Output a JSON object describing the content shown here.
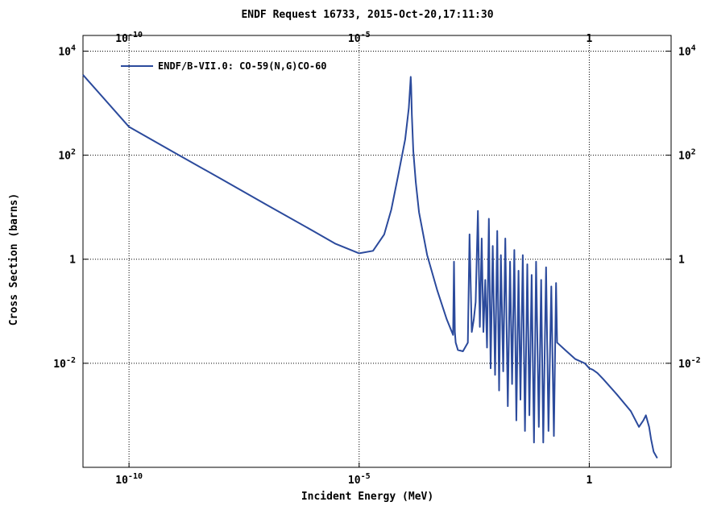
{
  "chart_data": {
    "type": "line",
    "title": "ENDF Request 16733, 2015-Oct-20,17:11:30",
    "xlabel": "Incident Energy (MeV)",
    "ylabel": "Cross Section (barns)",
    "x_scale": "log",
    "y_scale": "log",
    "xlim": [
      1e-11,
      60
    ],
    "ylim": [
      0.0001,
      20000
    ],
    "grid": true,
    "legend_position": "top-left",
    "x_ticks": [
      {
        "value": 1e-10,
        "base": "10",
        "exp": "-10"
      },
      {
        "value": 1e-05,
        "base": "10",
        "exp": "-5"
      },
      {
        "value": 1,
        "base": "1",
        "exp": ""
      }
    ],
    "y_ticks": [
      {
        "value": 10000,
        "base": "10",
        "exp": "4"
      },
      {
        "value": 100,
        "base": "10",
        "exp": "2"
      },
      {
        "value": 1,
        "base": "1",
        "exp": ""
      },
      {
        "value": 0.01,
        "base": "10",
        "exp": "-2"
      }
    ],
    "series": [
      {
        "name": "ENDF/B-VII.0: CO-59(N,G)CO-60",
        "color": "#2b4a9c",
        "x": [
          1e-11,
          1e-10,
          1e-09,
          1e-08,
          1e-07,
          1e-06,
          3e-06,
          1e-05,
          2e-05,
          3.5e-05,
          5e-05,
          7e-05,
          0.0001,
          0.00012,
          0.00013,
          0.000132,
          0.000135,
          0.00014,
          0.00015,
          0.00017,
          0.0002,
          0.0003,
          0.0005,
          0.0008,
          0.0011,
          0.00115,
          0.0012,
          0.00125,
          0.0014,
          0.0018,
          0.0023,
          0.0025,
          0.0028,
          0.0031,
          0.0034,
          0.0038,
          0.0042,
          0.0046,
          0.005,
          0.0055,
          0.006,
          0.0066,
          0.0072,
          0.008,
          0.009,
          0.01,
          0.011,
          0.012,
          0.0135,
          0.015,
          0.017,
          0.019,
          0.021,
          0.0235,
          0.026,
          0.029,
          0.032,
          0.036,
          0.04,
          0.045,
          0.05,
          0.056,
          0.063,
          0.07,
          0.08,
          0.09,
          0.1,
          0.115,
          0.13,
          0.15,
          0.17,
          0.19,
          0.2,
          0.3,
          0.5,
          0.8,
          1.0,
          1.2,
          1.5,
          2,
          4,
          8,
          12,
          15,
          17,
          20,
          22,
          25,
          30
        ],
        "y": [
          3500,
          350,
          110,
          35,
          11,
          3.5,
          2.0,
          1.3,
          1.45,
          3.0,
          9,
          40,
          200,
          800,
          2500,
          3200,
          2200,
          600,
          120,
          30,
          8,
          1.2,
          0.25,
          0.07,
          0.035,
          0.9,
          0.04,
          0.025,
          0.018,
          0.017,
          0.025,
          3.0,
          0.04,
          0.07,
          0.15,
          8.5,
          0.05,
          2.5,
          0.04,
          0.4,
          0.02,
          6.0,
          0.008,
          1.8,
          0.006,
          3.5,
          0.003,
          1.2,
          0.007,
          2.5,
          0.0015,
          0.9,
          0.004,
          1.5,
          0.0008,
          0.6,
          0.002,
          1.2,
          0.0005,
          0.8,
          0.001,
          0.5,
          0.0003,
          0.9,
          0.0006,
          0.4,
          0.0003,
          0.7,
          0.0005,
          0.3,
          0.0004,
          0.35,
          0.025,
          0.018,
          0.012,
          0.01,
          0.008,
          0.0075,
          0.0065,
          0.005,
          0.0025,
          0.0012,
          0.0006,
          0.0008,
          0.001,
          0.0006,
          0.00035,
          0.0002,
          0.00015
        ]
      }
    ]
  }
}
